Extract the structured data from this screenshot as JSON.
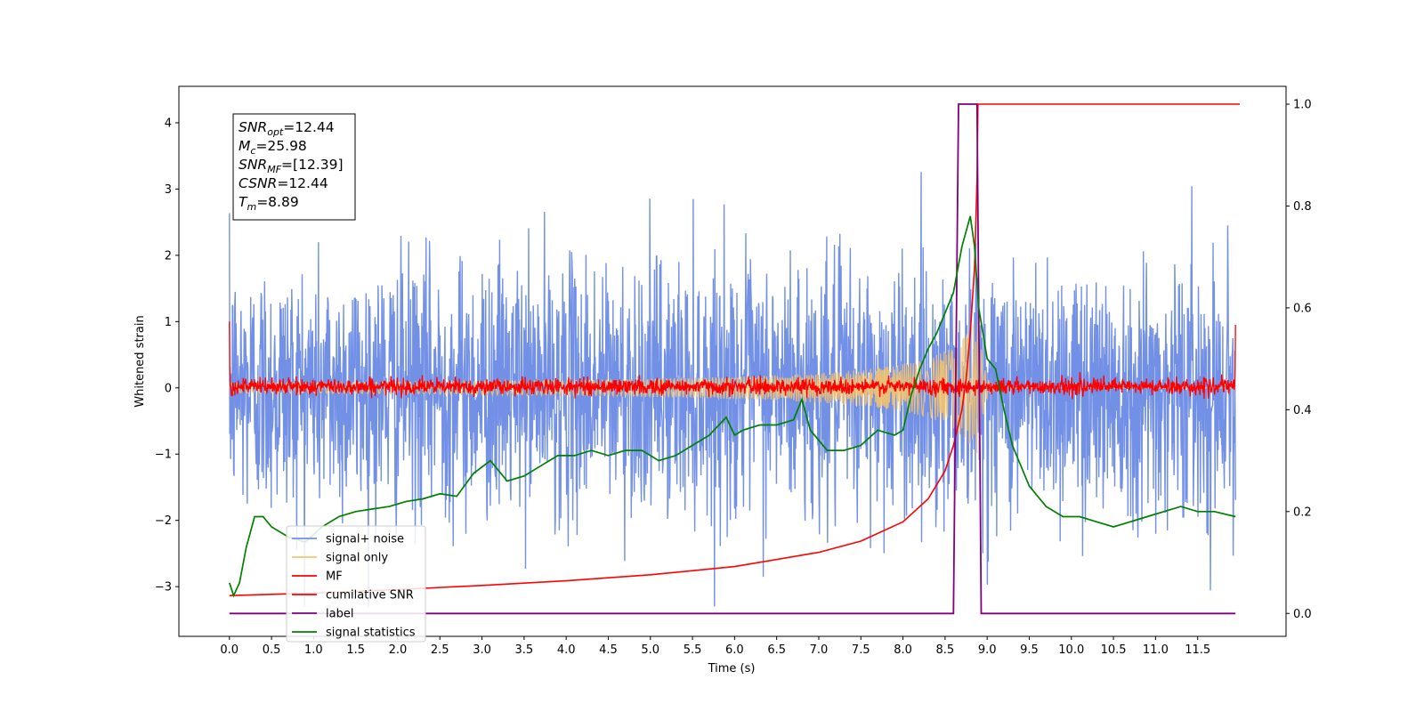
{
  "chart_data": {
    "type": "line",
    "xlabel": "Time (s)",
    "ylabel": "Whitened strain",
    "xlim": [
      -0.6,
      12.55
    ],
    "ylim": [
      -3.75,
      4.55
    ],
    "y2lim": [
      -0.045,
      1.035
    ],
    "xticks": [
      "0.0",
      "0.5",
      "1.0",
      "1.5",
      "2.0",
      "2.5",
      "3.0",
      "3.5",
      "4.0",
      "4.5",
      "5.0",
      "5.5",
      "6.0",
      "6.5",
      "7.0",
      "7.5",
      "8.0",
      "8.5",
      "9.0",
      "9.5",
      "10.0",
      "10.5",
      "11.0",
      "11.5"
    ],
    "yticks": [
      "-3",
      "-2",
      "-1",
      "0",
      "1",
      "2",
      "3",
      "4"
    ],
    "y2ticks": [
      "0.0",
      "0.2",
      "0.4",
      "0.6",
      "0.8",
      "1.0"
    ],
    "legend_position": "lower-left",
    "legend": [
      "signal+ noise",
      "signal only",
      "MF",
      "cumilative SNR",
      "label",
      "signal statistics"
    ],
    "annotation": [
      {
        "main": "SNR",
        "sub": "opt",
        "rest": "=12.44"
      },
      {
        "main": "M",
        "sub": "c",
        "rest": "=25.98"
      },
      {
        "main": "SNR",
        "sub": "MF",
        "rest": "=[12.39]"
      },
      {
        "main": "CSNR",
        "sub": "",
        "rest": "=12.44"
      },
      {
        "main": "T",
        "sub": "m",
        "rest": "=8.89"
      }
    ],
    "series": [
      {
        "name": "signal+ noise",
        "axis": "left",
        "color": "#7290e6",
        "kind": "noise",
        "std": 0.95
      },
      {
        "name": "signal only",
        "axis": "left",
        "color": "#f5c46e",
        "kind": "chirp",
        "merger": 8.89,
        "peak_amplitude": 1.25
      },
      {
        "name": "MF",
        "axis": "left",
        "color": "#ff0000",
        "kind": "noise",
        "std": 0.06,
        "edge_start": 1.0,
        "edge_end": 0.95
      },
      {
        "name": "cumilative SNR",
        "axis": "right",
        "color": "#ff0000",
        "x": [
          0.0,
          1.0,
          2.0,
          3.0,
          4.0,
          5.0,
          6.0,
          7.0,
          7.5,
          8.0,
          8.3,
          8.5,
          8.6,
          8.7,
          8.75,
          8.8,
          8.85,
          8.88,
          8.89,
          12.0
        ],
        "y": [
          0.035,
          0.04,
          0.047,
          0.055,
          0.064,
          0.076,
          0.092,
          0.12,
          0.142,
          0.18,
          0.225,
          0.28,
          0.33,
          0.4,
          0.46,
          0.55,
          0.68,
          0.85,
          1.0,
          1.0
        ]
      },
      {
        "name": "label",
        "axis": "right",
        "color": "#800080",
        "x": [
          0.0,
          8.6,
          8.66,
          8.88,
          8.93,
          11.95
        ],
        "y": [
          0.0,
          0.0,
          1.0,
          1.0,
          0.0,
          0.0
        ]
      },
      {
        "name": "signal statistics",
        "axis": "right",
        "color": "#008000",
        "x": [
          0.0,
          0.05,
          0.12,
          0.2,
          0.3,
          0.4,
          0.5,
          0.7,
          0.9,
          1.1,
          1.3,
          1.5,
          1.7,
          1.9,
          2.1,
          2.3,
          2.5,
          2.7,
          2.9,
          3.1,
          3.3,
          3.5,
          3.7,
          3.9,
          4.1,
          4.3,
          4.5,
          4.7,
          4.9,
          5.1,
          5.3,
          5.5,
          5.7,
          5.9,
          6.0,
          6.1,
          6.3,
          6.5,
          6.7,
          6.8,
          6.9,
          7.1,
          7.3,
          7.5,
          7.7,
          7.9,
          8.0,
          8.1,
          8.2,
          8.3,
          8.4,
          8.5,
          8.6,
          8.7,
          8.8,
          8.85,
          8.9,
          9.0,
          9.1,
          9.2,
          9.3,
          9.5,
          9.7,
          9.9,
          10.1,
          10.3,
          10.5,
          10.7,
          10.9,
          11.1,
          11.3,
          11.5,
          11.7,
          11.95
        ],
        "y": [
          0.06,
          0.035,
          0.06,
          0.13,
          0.19,
          0.19,
          0.17,
          0.15,
          0.14,
          0.17,
          0.19,
          0.2,
          0.205,
          0.21,
          0.22,
          0.225,
          0.235,
          0.23,
          0.275,
          0.3,
          0.26,
          0.27,
          0.29,
          0.31,
          0.31,
          0.32,
          0.31,
          0.32,
          0.32,
          0.3,
          0.31,
          0.33,
          0.35,
          0.385,
          0.35,
          0.36,
          0.37,
          0.37,
          0.38,
          0.42,
          0.36,
          0.32,
          0.32,
          0.33,
          0.36,
          0.35,
          0.36,
          0.43,
          0.48,
          0.52,
          0.55,
          0.59,
          0.63,
          0.72,
          0.78,
          0.72,
          0.6,
          0.5,
          0.48,
          0.4,
          0.33,
          0.25,
          0.21,
          0.19,
          0.19,
          0.18,
          0.17,
          0.18,
          0.19,
          0.2,
          0.21,
          0.2,
          0.2,
          0.19
        ]
      }
    ]
  }
}
